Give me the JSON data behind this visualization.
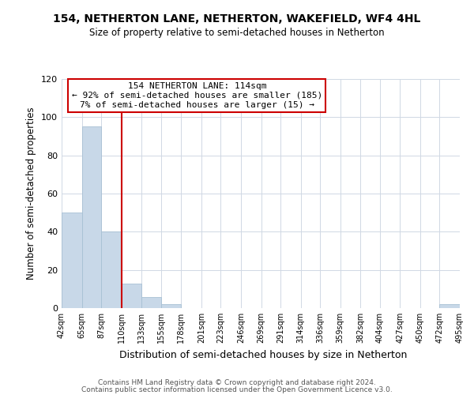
{
  "title": "154, NETHERTON LANE, NETHERTON, WAKEFIELD, WF4 4HL",
  "subtitle": "Size of property relative to semi-detached houses in Netherton",
  "xlabel": "Distribution of semi-detached houses by size in Netherton",
  "ylabel": "Number of semi-detached properties",
  "bar_edges": [
    42,
    65,
    87,
    110,
    133,
    155,
    178,
    201,
    223,
    246,
    269,
    291,
    314,
    336,
    359,
    382,
    404,
    427,
    450,
    472,
    495
  ],
  "bar_heights": [
    50,
    95,
    40,
    13,
    6,
    2,
    0,
    0,
    0,
    0,
    0,
    0,
    0,
    0,
    0,
    0,
    0,
    0,
    0,
    2
  ],
  "bar_color": "#c8d8e8",
  "bar_edge_color": "#a8c0d4",
  "property_line_x": 110,
  "property_size": 114,
  "annotation_title": "154 NETHERTON LANE: 114sqm",
  "annotation_line1": "← 92% of semi-detached houses are smaller (185)",
  "annotation_line2": "7% of semi-detached houses are larger (15) →",
  "annotation_box_color": "#ffffff",
  "annotation_box_edge": "#cc0000",
  "property_line_color": "#cc0000",
  "ylim": [
    0,
    120
  ],
  "yticks": [
    0,
    20,
    40,
    60,
    80,
    100,
    120
  ],
  "footer1": "Contains HM Land Registry data © Crown copyright and database right 2024.",
  "footer2": "Contains public sector information licensed under the Open Government Licence v3.0.",
  "background_color": "#ffffff",
  "grid_color": "#d0d8e4"
}
